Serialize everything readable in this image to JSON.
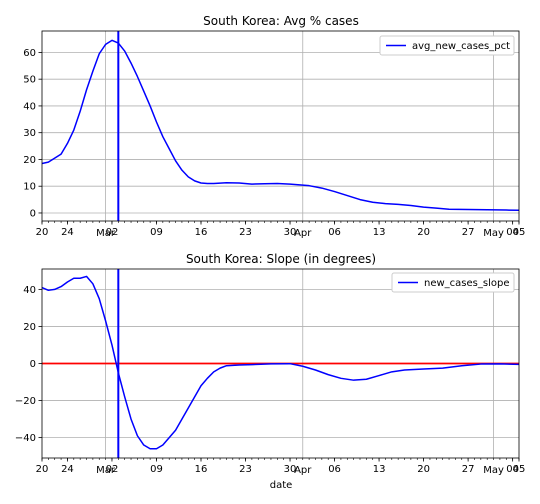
{
  "chart_data": [
    {
      "type": "line",
      "title": "South Korea: Avg % cases",
      "xlabel": "",
      "ylabel": "",
      "x_range": [
        "2020-02-20",
        "2020-05-05"
      ],
      "ylim": [
        -3,
        68
      ],
      "yticks": [
        0,
        10,
        20,
        30,
        40,
        50,
        60
      ],
      "xticks_day": [
        {
          "date": "2020-02-20",
          "label": "20"
        },
        {
          "date": "2020-02-24",
          "label": "24"
        },
        {
          "date": "2020-03-02",
          "label": "02"
        },
        {
          "date": "2020-03-09",
          "label": "09"
        },
        {
          "date": "2020-03-16",
          "label": "16"
        },
        {
          "date": "2020-03-23",
          "label": "23"
        },
        {
          "date": "2020-03-30",
          "label": "30"
        },
        {
          "date": "2020-04-06",
          "label": "06"
        },
        {
          "date": "2020-04-13",
          "label": "13"
        },
        {
          "date": "2020-04-20",
          "label": "20"
        },
        {
          "date": "2020-04-27",
          "label": "27"
        },
        {
          "date": "2020-05-04",
          "label": "04"
        },
        {
          "date": "2020-05-05",
          "label": "05"
        }
      ],
      "xticks_month": [
        {
          "date": "2020-03-01",
          "label": "Mar"
        },
        {
          "date": "2020-04-01",
          "label": "Apr"
        },
        {
          "date": "2020-05-01",
          "label": "May"
        }
      ],
      "grid": true,
      "legend_position": "top-right",
      "vline": {
        "date": "2020-03-03",
        "color": "#0000ff"
      },
      "series": [
        {
          "name": "avg_new_cases_pct",
          "color": "#0000ff",
          "x": [
            "2020-02-20",
            "2020-02-21",
            "2020-02-22",
            "2020-02-23",
            "2020-02-24",
            "2020-02-25",
            "2020-02-26",
            "2020-02-27",
            "2020-02-28",
            "2020-02-29",
            "2020-03-01",
            "2020-03-02",
            "2020-03-03",
            "2020-03-04",
            "2020-03-05",
            "2020-03-06",
            "2020-03-07",
            "2020-03-08",
            "2020-03-09",
            "2020-03-10",
            "2020-03-11",
            "2020-03-12",
            "2020-03-13",
            "2020-03-14",
            "2020-03-15",
            "2020-03-16",
            "2020-03-17",
            "2020-03-18",
            "2020-03-20",
            "2020-03-22",
            "2020-03-24",
            "2020-03-26",
            "2020-03-28",
            "2020-03-30",
            "2020-04-01",
            "2020-04-02",
            "2020-04-04",
            "2020-04-06",
            "2020-04-08",
            "2020-04-10",
            "2020-04-12",
            "2020-04-14",
            "2020-04-16",
            "2020-04-18",
            "2020-04-20",
            "2020-04-22",
            "2020-04-24",
            "2020-04-27",
            "2020-04-30",
            "2020-05-03",
            "2020-05-05"
          ],
          "y": [
            18.5,
            19,
            20.5,
            22,
            26,
            31,
            38,
            46,
            53,
            59.5,
            63,
            64.5,
            63.5,
            60.5,
            56,
            51,
            45.5,
            40,
            34,
            28.5,
            24,
            19.5,
            16,
            13.5,
            12,
            11.2,
            11,
            11,
            11.3,
            11.2,
            10.8,
            10.9,
            11,
            10.8,
            10.4,
            10.2,
            9.3,
            8,
            6.5,
            5,
            4,
            3.5,
            3.2,
            2.8,
            2.2,
            1.8,
            1.4,
            1.3,
            1.2,
            1.1,
            1.0
          ]
        }
      ]
    },
    {
      "type": "line",
      "title": "South Korea: Slope (in degrees)",
      "xlabel": "date",
      "ylabel": "",
      "x_range": [
        "2020-02-20",
        "2020-05-05"
      ],
      "ylim": [
        -51,
        51
      ],
      "yticks": [
        -40,
        -20,
        0,
        20,
        40
      ],
      "xticks_day": [
        {
          "date": "2020-02-20",
          "label": "20"
        },
        {
          "date": "2020-02-24",
          "label": "24"
        },
        {
          "date": "2020-03-02",
          "label": "02"
        },
        {
          "date": "2020-03-09",
          "label": "09"
        },
        {
          "date": "2020-03-16",
          "label": "16"
        },
        {
          "date": "2020-03-23",
          "label": "23"
        },
        {
          "date": "2020-03-30",
          "label": "30"
        },
        {
          "date": "2020-04-06",
          "label": "06"
        },
        {
          "date": "2020-04-13",
          "label": "13"
        },
        {
          "date": "2020-04-20",
          "label": "20"
        },
        {
          "date": "2020-04-27",
          "label": "27"
        },
        {
          "date": "2020-05-04",
          "label": "04"
        },
        {
          "date": "2020-05-05",
          "label": "05"
        }
      ],
      "xticks_month": [
        {
          "date": "2020-03-01",
          "label": "Mar"
        },
        {
          "date": "2020-04-01",
          "label": "Apr"
        },
        {
          "date": "2020-05-01",
          "label": "May"
        }
      ],
      "grid": true,
      "legend_position": "top-right",
      "vline": {
        "date": "2020-03-03",
        "color": "#0000ff"
      },
      "hline": {
        "y": 0,
        "color": "#ff0000"
      },
      "series": [
        {
          "name": "new_cases_slope",
          "color": "#0000ff",
          "x": [
            "2020-02-20",
            "2020-02-21",
            "2020-02-22",
            "2020-02-23",
            "2020-02-24",
            "2020-02-25",
            "2020-02-26",
            "2020-02-27",
            "2020-02-28",
            "2020-02-29",
            "2020-03-01",
            "2020-03-02",
            "2020-03-03",
            "2020-03-04",
            "2020-03-05",
            "2020-03-06",
            "2020-03-07",
            "2020-03-08",
            "2020-03-09",
            "2020-03-10",
            "2020-03-11",
            "2020-03-12",
            "2020-03-13",
            "2020-03-14",
            "2020-03-15",
            "2020-03-16",
            "2020-03-17",
            "2020-03-18",
            "2020-03-19",
            "2020-03-20",
            "2020-03-22",
            "2020-03-24",
            "2020-03-27",
            "2020-03-30",
            "2020-04-01",
            "2020-04-03",
            "2020-04-05",
            "2020-04-07",
            "2020-04-09",
            "2020-04-11",
            "2020-04-13",
            "2020-04-15",
            "2020-04-17",
            "2020-04-20",
            "2020-04-23",
            "2020-04-26",
            "2020-04-29",
            "2020-05-02",
            "2020-05-05"
          ],
          "y": [
            41,
            39.5,
            40,
            41.5,
            44,
            46,
            46,
            47,
            43,
            35,
            23,
            10,
            -5,
            -18,
            -30,
            -39,
            -44,
            -46,
            -46,
            -44,
            -40,
            -36,
            -30,
            -24,
            -18,
            -12,
            -8,
            -4.5,
            -2.5,
            -1.2,
            -0.8,
            -0.6,
            -0.2,
            -0.1,
            -1.5,
            -3.5,
            -6,
            -8,
            -9,
            -8.5,
            -6.5,
            -4.5,
            -3.5,
            -3,
            -2.5,
            -1.2,
            -0.3,
            -0.2,
            -0.5
          ]
        }
      ]
    }
  ]
}
